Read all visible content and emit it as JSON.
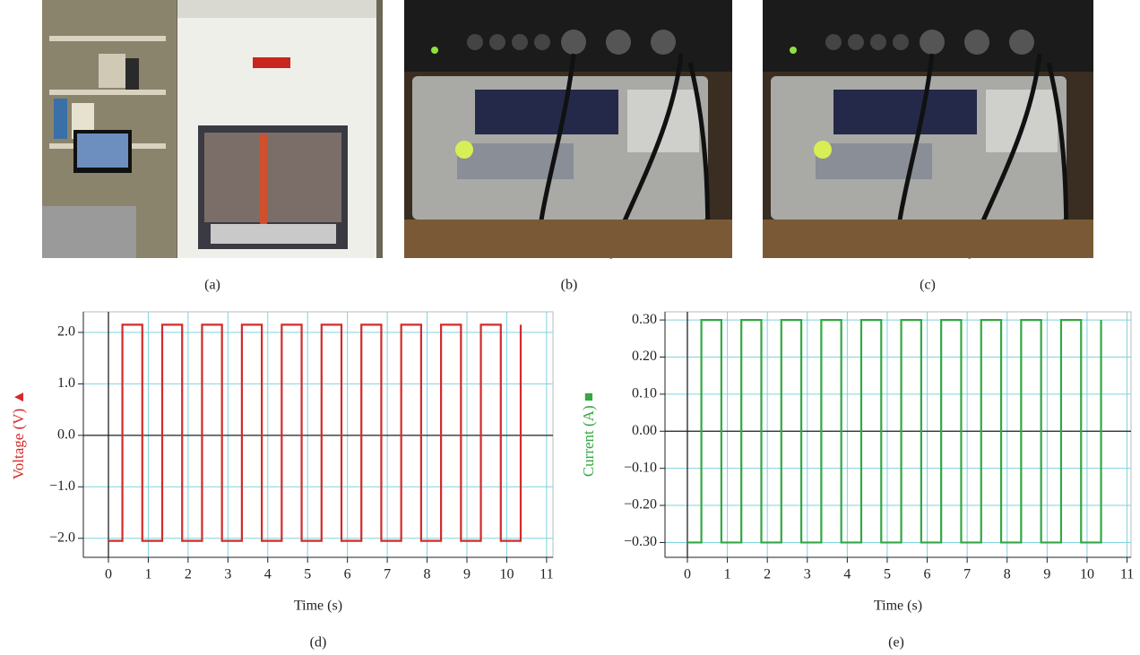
{
  "figure": {
    "panel_labels": [
      "(a)",
      "(b)",
      "(c)",
      "(d)",
      "(e)"
    ]
  },
  "chart_data": [
    {
      "type": "line",
      "x_label": "Time (s)",
      "y_label": "Voltage (V) ▲",
      "color": "#d42a2a",
      "x": [
        0,
        0.35,
        0.35,
        0.85,
        0.85,
        1.35,
        1.35,
        1.85,
        1.85,
        2.35,
        2.35,
        2.85,
        2.85,
        3.35,
        3.35,
        3.85,
        3.85,
        4.35,
        4.35,
        4.85,
        4.85,
        5.35,
        5.35,
        5.85,
        5.85,
        6.35,
        6.35,
        6.85,
        6.85,
        7.35,
        7.35,
        7.85,
        7.85,
        8.35,
        8.35,
        8.85,
        8.85,
        9.35,
        9.35,
        9.85,
        9.85,
        10.35,
        10.35
      ],
      "series": [
        {
          "color": "#d42a2a",
          "values": [
            -2.05,
            -2.05,
            2.15,
            2.15,
            -2.05,
            -2.05,
            2.15,
            2.15,
            -2.05,
            -2.05,
            2.15,
            2.15,
            -2.05,
            -2.05,
            2.15,
            2.15,
            -2.05,
            -2.05,
            2.15,
            2.15,
            -2.05,
            -2.05,
            2.15,
            2.15,
            -2.05,
            -2.05,
            2.15,
            2.15,
            -2.05,
            -2.05,
            2.15,
            2.15,
            -2.05,
            -2.05,
            2.15,
            2.15,
            -2.05,
            -2.05,
            2.15,
            2.15,
            -2.05,
            -2.05,
            2.15
          ]
        }
      ],
      "xlim": [
        -0.63,
        11.16
      ],
      "ylim": [
        -2.37,
        2.4
      ],
      "xticks": [
        0,
        1,
        2,
        3,
        4,
        5,
        6,
        7,
        8,
        9,
        10,
        11
      ],
      "yticks": [
        {
          "value": 2,
          "label": "2.0"
        },
        {
          "value": 1,
          "label": "1.0"
        },
        {
          "value": 0,
          "label": "0.0"
        },
        {
          "value": -1,
          "label": "−1.0"
        },
        {
          "value": -2,
          "label": "−2.0"
        }
      ],
      "grid": true
    },
    {
      "type": "line",
      "x_label": "Time (s)",
      "y_label": "Current (A) ■",
      "color": "#33a843",
      "x": [
        0,
        0.35,
        0.35,
        0.85,
        0.85,
        1.35,
        1.35,
        1.85,
        1.85,
        2.35,
        2.35,
        2.85,
        2.85,
        3.35,
        3.35,
        3.85,
        3.85,
        4.35,
        4.35,
        4.85,
        4.85,
        5.35,
        5.35,
        5.85,
        5.85,
        6.35,
        6.35,
        6.85,
        6.85,
        7.35,
        7.35,
        7.85,
        7.85,
        8.35,
        8.35,
        8.85,
        8.85,
        9.35,
        9.35,
        9.85,
        9.85,
        10.35,
        10.35
      ],
      "series": [
        {
          "color": "#33a843",
          "values": [
            -0.3,
            -0.3,
            0.3,
            0.3,
            -0.3,
            -0.3,
            0.3,
            0.3,
            -0.3,
            -0.3,
            0.3,
            0.3,
            -0.3,
            -0.3,
            0.3,
            0.3,
            -0.3,
            -0.3,
            0.3,
            0.3,
            -0.3,
            -0.3,
            0.3,
            0.3,
            -0.3,
            -0.3,
            0.3,
            0.3,
            -0.3,
            -0.3,
            0.3,
            0.3,
            -0.3,
            -0.3,
            0.3,
            0.3,
            -0.3,
            -0.3,
            0.3,
            0.3,
            -0.3,
            -0.3,
            0.3
          ]
        }
      ],
      "xlim": [
        -0.56,
        11.1
      ],
      "ylim": [
        -0.34,
        0.322
      ],
      "xticks": [
        0,
        1,
        2,
        3,
        4,
        5,
        6,
        7,
        8,
        9,
        10,
        11
      ],
      "yticks": [
        {
          "value": 0.3,
          "label": "0.30"
        },
        {
          "value": 0.2,
          "label": "0.20"
        },
        {
          "value": 0.1,
          "label": "0.10"
        },
        {
          "value": 0,
          "label": "0.00"
        },
        {
          "value": -0.1,
          "label": "−0.10"
        },
        {
          "value": -0.2,
          "label": "−0.20"
        },
        {
          "value": -0.3,
          "label": "−0.30"
        }
      ],
      "grid": true
    }
  ]
}
